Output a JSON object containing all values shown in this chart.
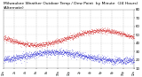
{
  "title": "Milwaukee Weather Outdoor Temp / Dew Point  by Minute  (24 Hours) (Alternate)",
  "title_fontsize": 3.2,
  "xlim": [
    0,
    1440
  ],
  "ylim": [
    10,
    80
  ],
  "yticks": [
    10,
    20,
    30,
    40,
    50,
    60,
    70,
    80
  ],
  "ytick_labels": [
    "10",
    "20",
    "30",
    "40",
    "50",
    "60",
    "70",
    "80"
  ],
  "ytick_fontsize": 2.8,
  "xtick_fontsize": 2.2,
  "grid_color": "#aaaaaa",
  "grid_style": "--",
  "bg_color": "#ffffff",
  "temp_color": "#cc0000",
  "dew_color": "#0000cc",
  "dot_size": 0.08,
  "xtick_positions": [
    0,
    120,
    240,
    360,
    480,
    600,
    720,
    840,
    960,
    1080,
    1200,
    1320,
    1440
  ],
  "xtick_labels": [
    "12a",
    "2a",
    "4a",
    "6a",
    "8a",
    "10a",
    "12p",
    "2p",
    "4p",
    "6p",
    "8p",
    "10p",
    "12a"
  ],
  "temp_base_start": 42,
  "temp_min": 38,
  "temp_max": 55,
  "dew_base": 24,
  "dew_amplitude": 5
}
